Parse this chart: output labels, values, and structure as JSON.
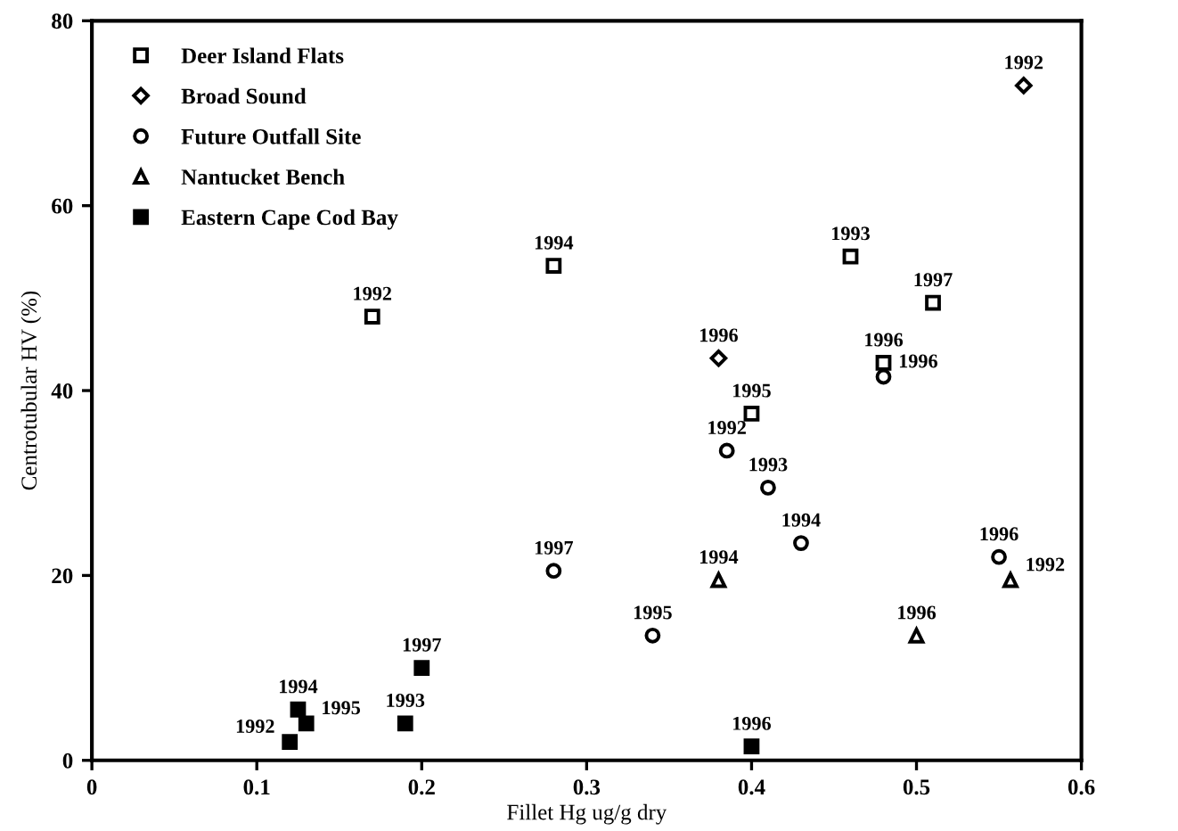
{
  "chart_data": {
    "type": "scatter",
    "xlabel": "Fillet Hg ug/g dry",
    "ylabel": "Centrotubular HV (%)",
    "xlim": [
      0,
      0.6
    ],
    "ylim": [
      0,
      80
    ],
    "xticks": [
      0,
      0.1,
      0.2,
      0.3,
      0.4,
      0.5,
      0.6
    ],
    "yticks": [
      0,
      20,
      40,
      60,
      80
    ],
    "grid": false,
    "legend": "top left",
    "series": [
      {
        "name": "Deer Island Flats",
        "color": "#ffffff",
        "marker": "square",
        "x": [
          0.17,
          0.28,
          0.46,
          0.51,
          0.4,
          0.48
        ],
        "values": [
          48,
          53.5,
          54.5,
          49.5,
          37.5,
          43
        ]
      },
      {
        "name": "Broad Sound",
        "color": "#ffffff",
        "marker": "diamond",
        "x": [
          0.38,
          0.565
        ],
        "values": [
          43.5,
          73
        ]
      },
      {
        "name": "Future Outfall Site",
        "color": "#ffffff",
        "marker": "circle",
        "x": [
          0.28,
          0.34,
          0.41,
          0.43,
          0.385,
          0.48,
          0.55
        ],
        "values": [
          20.5,
          13.5,
          29.5,
          23.5,
          33.5,
          41.5,
          22
        ]
      },
      {
        "name": "Nantucket Bench",
        "color": "#ffffff",
        "marker": "triangle",
        "x": [
          0.38,
          0.5,
          0.557
        ],
        "values": [
          19.5,
          13.5,
          19.5
        ]
      },
      {
        "name": "Eastern Cape Cod Bay",
        "color": "#000000",
        "marker": "square",
        "x": [
          0.12,
          0.125,
          0.13,
          0.19,
          0.2,
          0.4
        ],
        "values": [
          2,
          5.5,
          4,
          4,
          10,
          1.5
        ]
      }
    ],
    "annotations": [
      {
        "text": "1992",
        "x": 0.17,
        "y": 48
      },
      {
        "text": "1994",
        "x": 0.28,
        "y": 53.5
      },
      {
        "text": "1993",
        "x": 0.46,
        "y": 54.5
      },
      {
        "text": "1997",
        "x": 0.51,
        "y": 49.5
      },
      {
        "text": "1995",
        "x": 0.4,
        "y": 37.5
      },
      {
        "text": "1996",
        "x": 0.48,
        "y": 43
      },
      {
        "text": "1996",
        "x": 0.38,
        "y": 43.5
      },
      {
        "text": "1992",
        "x": 0.565,
        "y": 73
      },
      {
        "text": "1997",
        "x": 0.28,
        "y": 20.5
      },
      {
        "text": "1995",
        "x": 0.34,
        "y": 13.5
      },
      {
        "text": "1993",
        "x": 0.41,
        "y": 29.5
      },
      {
        "text": "1994",
        "x": 0.43,
        "y": 23.5
      },
      {
        "text": "1992",
        "x": 0.385,
        "y": 33.5
      },
      {
        "text": "1996",
        "x": 0.48,
        "y": 41.5
      },
      {
        "text": "1996",
        "x": 0.55,
        "y": 22
      },
      {
        "text": "1994",
        "x": 0.38,
        "y": 19.5
      },
      {
        "text": "1996",
        "x": 0.5,
        "y": 13.5
      },
      {
        "text": "1992",
        "x": 0.557,
        "y": 19.5
      },
      {
        "text": "1992",
        "x": 0.12,
        "y": 2
      },
      {
        "text": "1994",
        "x": 0.125,
        "y": 5.5
      },
      {
        "text": "1995",
        "x": 0.13,
        "y": 4
      },
      {
        "text": "1993",
        "x": 0.19,
        "y": 4
      },
      {
        "text": "1997",
        "x": 0.2,
        "y": 10
      },
      {
        "text": "1996",
        "x": 0.4,
        "y": 1.5
      }
    ]
  }
}
